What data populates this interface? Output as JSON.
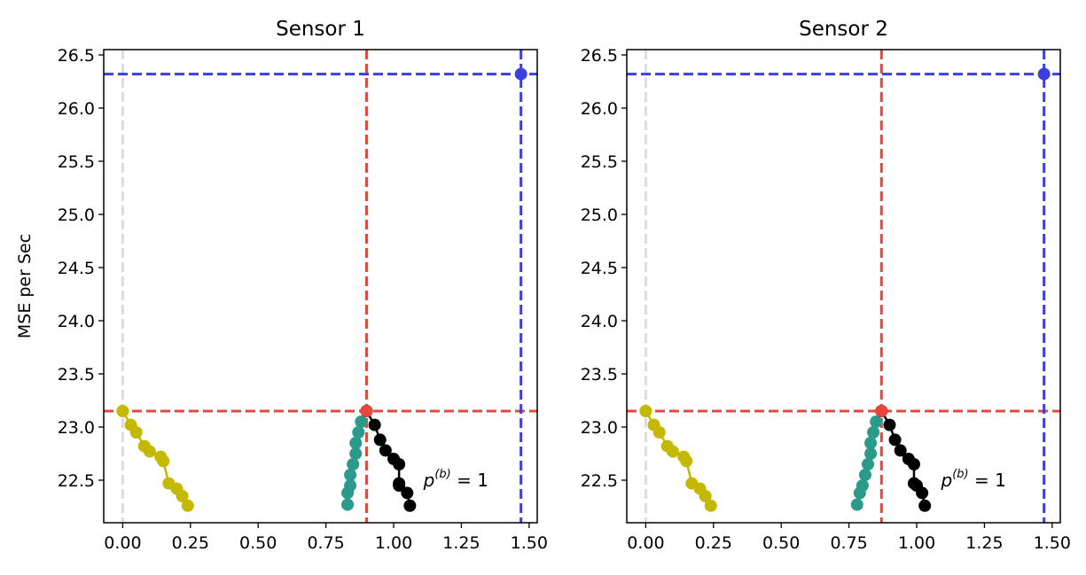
{
  "chart_data": [
    {
      "type": "scatter",
      "title": "Sensor 1",
      "xlabel": "",
      "ylabel": "MSE per Sec",
      "xlim": [
        -0.07,
        1.53
      ],
      "ylim": [
        22.1,
        26.55
      ],
      "xticks": [
        0.0,
        0.25,
        0.5,
        0.75,
        1.0,
        1.25,
        1.5
      ],
      "xtick_labels": [
        "0.00",
        "0.25",
        "0.50",
        "0.75",
        "1.00",
        "1.25",
        "1.50"
      ],
      "yticks": [
        22.5,
        23.0,
        23.5,
        24.0,
        24.5,
        25.0,
        25.5,
        26.0,
        26.5
      ],
      "ytick_labels": [
        "22.5",
        "23.0",
        "23.5",
        "24.0",
        "24.5",
        "25.0",
        "25.5",
        "26.0",
        "26.5"
      ],
      "grid": false,
      "reference_lines": [
        {
          "orientation": "vertical",
          "x": 0.0,
          "color": "#dddddd"
        },
        {
          "orientation": "vertical",
          "x": 0.9,
          "color": "#e8453c"
        },
        {
          "orientation": "horizontal",
          "y": 23.15,
          "color": "#e8453c"
        },
        {
          "orientation": "vertical",
          "x": 1.47,
          "color": "#3b3fe0"
        },
        {
          "orientation": "horizontal",
          "y": 26.32,
          "color": "#3b3fe0"
        }
      ],
      "series": [
        {
          "color": "#c4b800",
          "x": [
            0.0,
            0.03,
            0.05,
            0.08,
            0.1,
            0.14,
            0.15,
            0.17,
            0.2,
            0.22,
            0.24
          ],
          "y": [
            23.15,
            23.02,
            22.95,
            22.82,
            22.77,
            22.72,
            22.68,
            22.47,
            22.42,
            22.35,
            22.26
          ]
        },
        {
          "color": "#2a9a8a",
          "x": [
            0.9,
            0.88,
            0.87,
            0.86,
            0.86,
            0.85,
            0.84,
            0.84,
            0.83,
            0.83
          ],
          "y": [
            23.15,
            23.05,
            22.95,
            22.85,
            22.75,
            22.65,
            22.55,
            22.45,
            22.38,
            22.27
          ]
        },
        {
          "color": "#000000",
          "x": [
            0.9,
            0.93,
            0.95,
            0.97,
            1.0,
            1.02,
            1.02,
            1.02,
            1.05,
            1.06
          ],
          "y": [
            23.15,
            23.02,
            22.88,
            22.78,
            22.7,
            22.65,
            22.47,
            22.45,
            22.38,
            22.26
          ]
        },
        {
          "color": "#3b3fe0",
          "x": [
            1.47
          ],
          "y": [
            26.32
          ]
        },
        {
          "color": "#e8453c",
          "x": [
            0.9
          ],
          "y": [
            23.15
          ]
        }
      ],
      "annotation": {
        "text": "p(b) = 1",
        "x": 1.11,
        "y": 22.44
      }
    },
    {
      "type": "scatter",
      "title": "Sensor 2",
      "xlabel": "",
      "ylabel": "",
      "xlim": [
        -0.07,
        1.53
      ],
      "ylim": [
        22.1,
        26.55
      ],
      "xticks": [
        0.0,
        0.25,
        0.5,
        0.75,
        1.0,
        1.25,
        1.5
      ],
      "xtick_labels": [
        "0.00",
        "0.25",
        "0.50",
        "0.75",
        "1.00",
        "1.25",
        "1.50"
      ],
      "yticks": [
        22.5,
        23.0,
        23.5,
        24.0,
        24.5,
        25.0,
        25.5,
        26.0,
        26.5
      ],
      "ytick_labels": [
        "22.5",
        "23.0",
        "23.5",
        "24.0",
        "24.5",
        "25.0",
        "25.5",
        "26.0",
        "26.5"
      ],
      "grid": false,
      "reference_lines": [
        {
          "orientation": "vertical",
          "x": 0.0,
          "color": "#dddddd"
        },
        {
          "orientation": "vertical",
          "x": 0.87,
          "color": "#e8453c"
        },
        {
          "orientation": "horizontal",
          "y": 23.15,
          "color": "#e8453c"
        },
        {
          "orientation": "vertical",
          "x": 1.47,
          "color": "#3b3fe0"
        },
        {
          "orientation": "horizontal",
          "y": 26.32,
          "color": "#3b3fe0"
        }
      ],
      "series": [
        {
          "color": "#c4b800",
          "x": [
            0.0,
            0.03,
            0.05,
            0.08,
            0.1,
            0.14,
            0.15,
            0.17,
            0.2,
            0.22,
            0.24
          ],
          "y": [
            23.15,
            23.02,
            22.95,
            22.82,
            22.77,
            22.72,
            22.68,
            22.47,
            22.42,
            22.35,
            22.26
          ]
        },
        {
          "color": "#2a9a8a",
          "x": [
            0.87,
            0.85,
            0.84,
            0.83,
            0.83,
            0.82,
            0.81,
            0.8,
            0.79,
            0.78
          ],
          "y": [
            23.15,
            23.05,
            22.95,
            22.85,
            22.75,
            22.65,
            22.55,
            22.45,
            22.38,
            22.27
          ]
        },
        {
          "color": "#000000",
          "x": [
            0.87,
            0.9,
            0.92,
            0.94,
            0.97,
            0.99,
            0.99,
            1.0,
            1.02,
            1.03
          ],
          "y": [
            23.15,
            23.02,
            22.88,
            22.78,
            22.7,
            22.65,
            22.47,
            22.45,
            22.38,
            22.26
          ]
        },
        {
          "color": "#3b3fe0",
          "x": [
            1.47
          ],
          "y": [
            26.32
          ]
        },
        {
          "color": "#e8453c",
          "x": [
            0.87
          ],
          "y": [
            23.15
          ]
        }
      ],
      "annotation": {
        "text": "p(b) = 1",
        "x": 1.09,
        "y": 22.44
      }
    }
  ]
}
